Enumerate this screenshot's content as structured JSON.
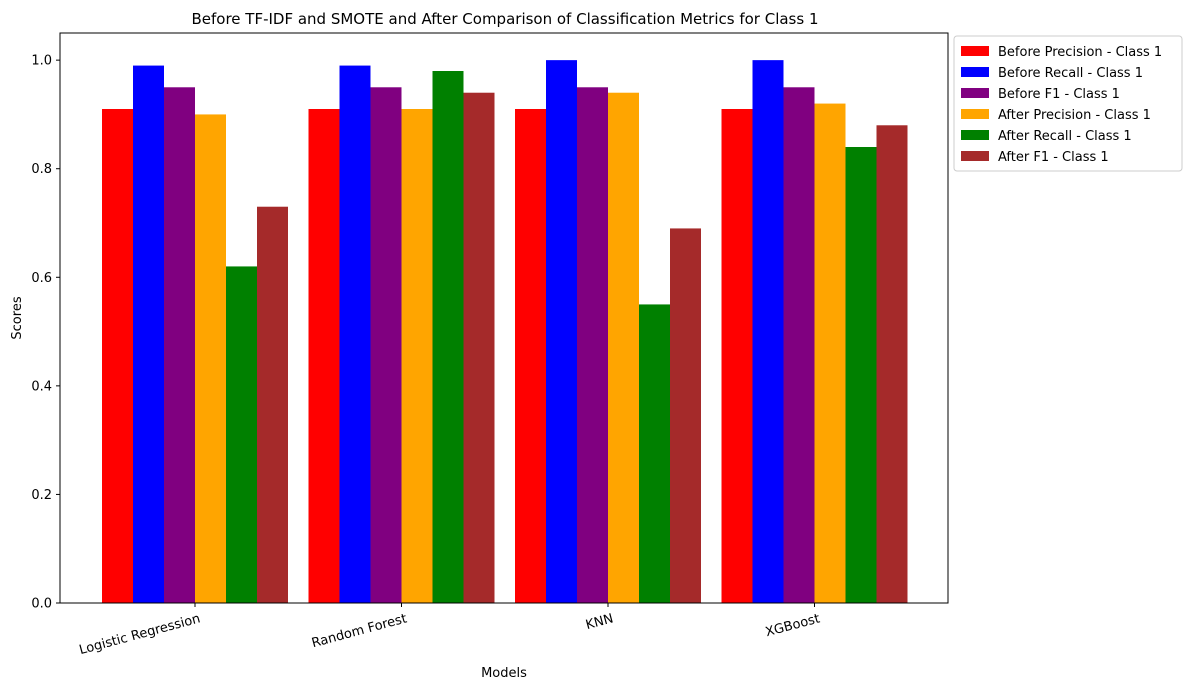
{
  "chart_data": {
    "type": "bar",
    "title": "Before TF-IDF and SMOTE and After Comparison of Classification Metrics for Class 1",
    "xlabel": "Models",
    "ylabel": "Scores",
    "categories": [
      "Logistic Regression",
      "Random Forest",
      "KNN",
      "XGBoost"
    ],
    "ylim": [
      0,
      1.05
    ],
    "yticks": [
      "0.0",
      "0.2",
      "0.4",
      "0.6",
      "0.8",
      "1.0"
    ],
    "x_tick_rotation": 15,
    "grid": false,
    "legend_position": "outside top-right",
    "series": [
      {
        "name": "Before Precision - Class 1",
        "color": "#ff0000",
        "values": [
          0.91,
          0.91,
          0.91,
          0.91
        ]
      },
      {
        "name": "Before Recall - Class 1",
        "color": "#0000ff",
        "values": [
          0.99,
          0.99,
          1.0,
          1.0
        ]
      },
      {
        "name": "Before F1 - Class 1",
        "color": "#800080",
        "values": [
          0.95,
          0.95,
          0.95,
          0.95
        ]
      },
      {
        "name": "After Precision - Class 1",
        "color": "#ffa500",
        "values": [
          0.9,
          0.91,
          0.94,
          0.92
        ]
      },
      {
        "name": "After Recall - Class 1",
        "color": "#008000",
        "values": [
          0.62,
          0.98,
          0.55,
          0.84
        ]
      },
      {
        "name": "After F1 - Class 1",
        "color": "#a52a2a",
        "values": [
          0.73,
          0.94,
          0.69,
          0.88
        ]
      }
    ]
  }
}
